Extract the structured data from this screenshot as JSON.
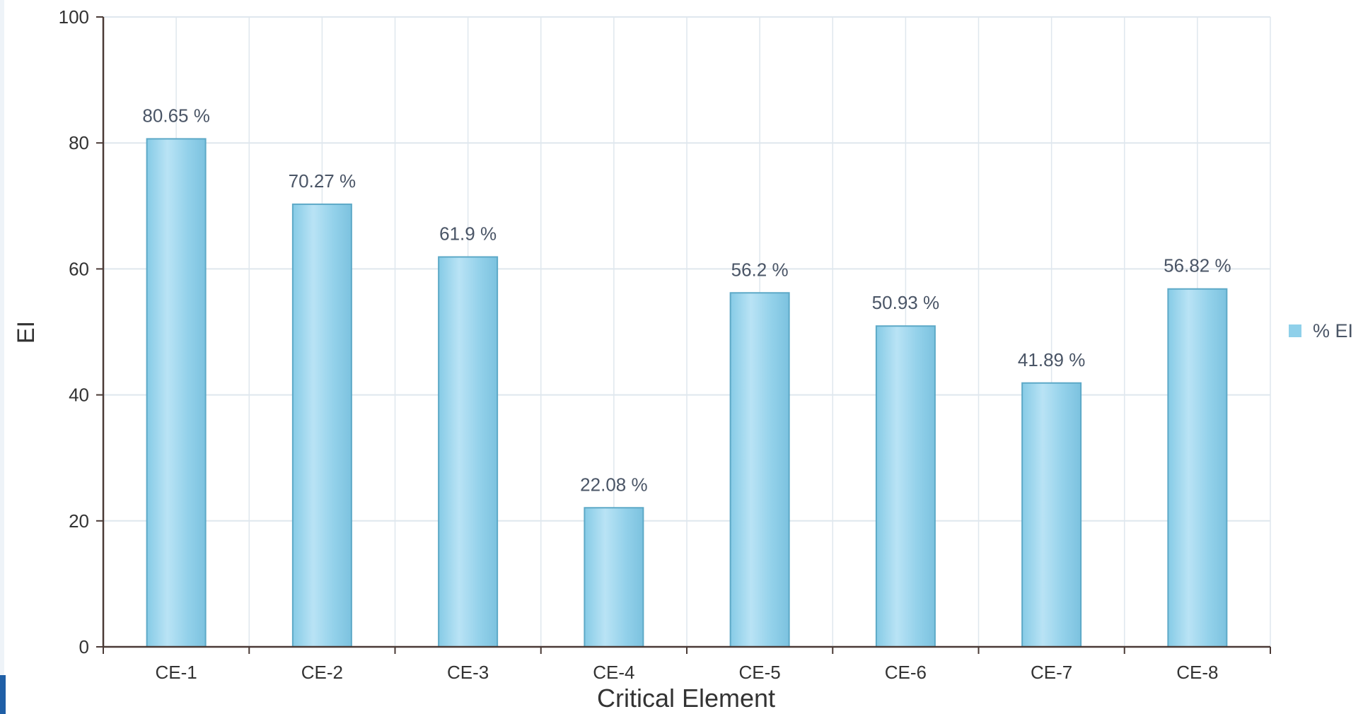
{
  "chart_data": {
    "type": "bar",
    "title": "",
    "xlabel": "Critical Element",
    "ylabel": "EI",
    "categories": [
      "CE-1",
      "CE-2",
      "CE-3",
      "CE-4",
      "CE-5",
      "CE-6",
      "CE-7",
      "CE-8"
    ],
    "series": [
      {
        "name": "% EI",
        "values": [
          80.65,
          70.27,
          61.9,
          22.08,
          56.2,
          50.93,
          41.89,
          56.82
        ],
        "data_labels": [
          "80.65 %",
          "70.27 %",
          "61.9 %",
          "22.08 %",
          "56.2 %",
          "50.93 %",
          "41.89 %",
          "56.82 %"
        ]
      }
    ],
    "ylim": [
      0,
      100
    ],
    "yticks": [
      0,
      20,
      40,
      60,
      80,
      100
    ],
    "grid": true,
    "legend": "right",
    "colors": {
      "bar": "#8fd0ea",
      "bar_highlight": "#bfe6f6",
      "bar_border": "#5da9c7",
      "axis": "#4a3a36",
      "grid": "#dfe7ee",
      "text": "#333333",
      "label": "#4a5566"
    }
  }
}
